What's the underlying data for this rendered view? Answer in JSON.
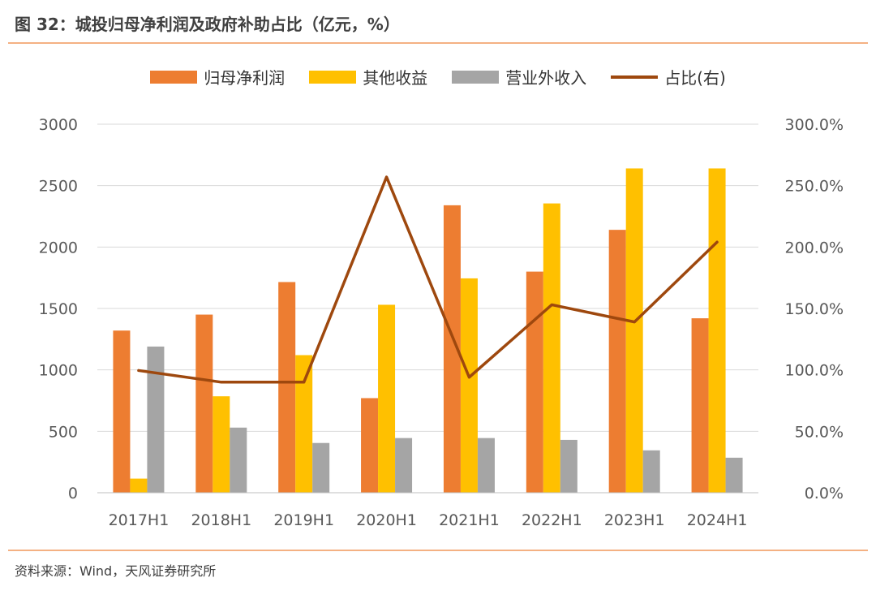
{
  "header": {
    "title": "图 32：城投归母净利润及政府补助占比（亿元，%）"
  },
  "footer": {
    "source": "资料来源：Wind，天风证券研究所"
  },
  "colors": {
    "net_profit": "#ED7D31",
    "other_income": "#FFC000",
    "non_operating": "#A5A5A5",
    "ratio": "#9E480E",
    "rule": "#F4B183"
  },
  "chart_data": {
    "type": "bar",
    "categories": [
      "2017H1",
      "2018H1",
      "2019H1",
      "2020H1",
      "2021H1",
      "2022H1",
      "2023H1",
      "2024H1"
    ],
    "series": [
      {
        "name": "归母净利润",
        "type": "bar",
        "axis": "left",
        "color": "#ED7D31",
        "values": [
          1320,
          1450,
          1715,
          770,
          2340,
          1800,
          2140,
          1420
        ]
      },
      {
        "name": "其他收益",
        "type": "bar",
        "axis": "left",
        "color": "#FFC000",
        "values": [
          115,
          785,
          1120,
          1530,
          1745,
          2355,
          2640,
          2640
        ]
      },
      {
        "name": "营业外收入",
        "type": "bar",
        "axis": "left",
        "color": "#A5A5A5",
        "values": [
          1190,
          530,
          405,
          445,
          445,
          430,
          345,
          285
        ]
      },
      {
        "name": "占比(右)",
        "type": "line",
        "axis": "right",
        "color": "#9E480E",
        "values": [
          99.5,
          90,
          90,
          257,
          94,
          153,
          139,
          204
        ]
      }
    ],
    "y_left": {
      "min": 0,
      "max": 3000,
      "ticks": [
        "0",
        "500",
        "1000",
        "1500",
        "2000",
        "2500",
        "3000"
      ]
    },
    "y_right": {
      "min": 0,
      "max": 300,
      "ticks": [
        "0.0%",
        "50.0%",
        "100.0%",
        "150.0%",
        "200.0%",
        "250.0%",
        "300.0%"
      ]
    },
    "grid": true,
    "legend_position": "top"
  }
}
